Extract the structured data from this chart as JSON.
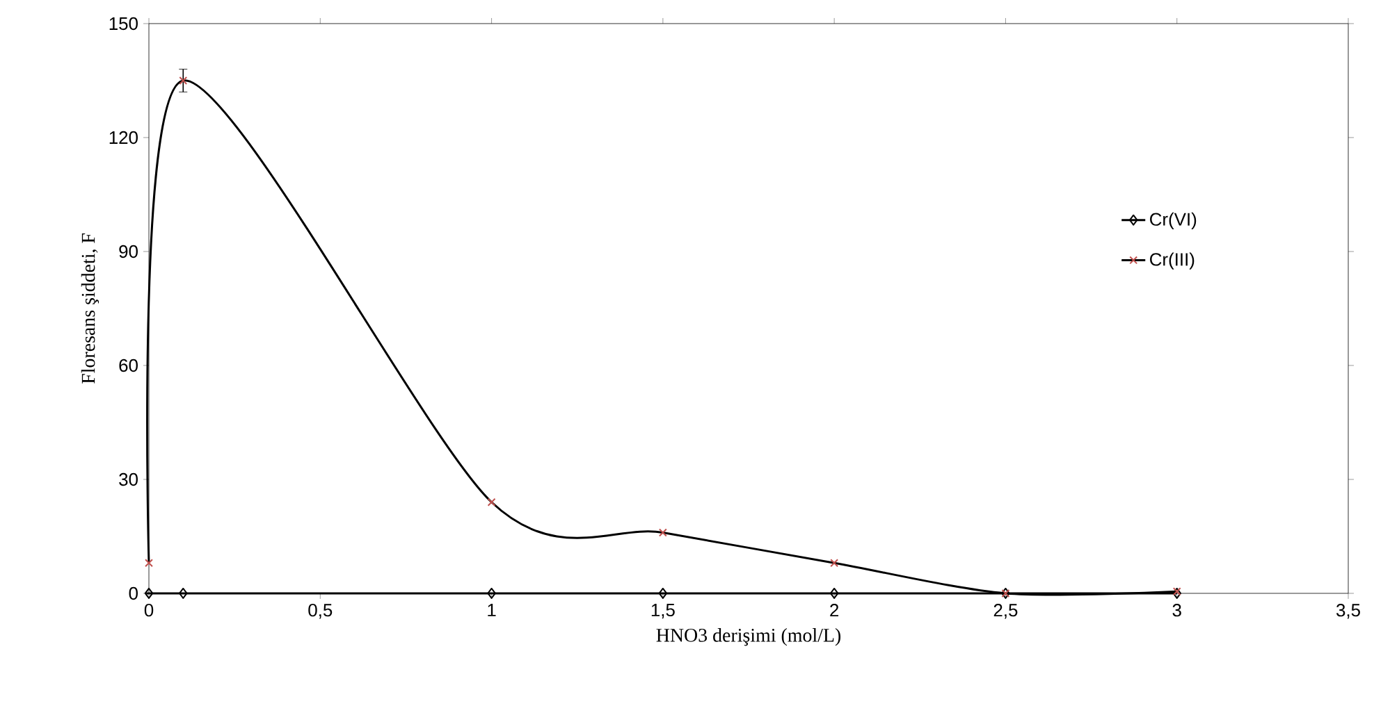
{
  "chart_data": {
    "type": "line",
    "xlabel": "HNO3 derişimi (mol/L)",
    "ylabel": "Floresans şiddeti, F",
    "xlim": [
      0,
      3.5
    ],
    "ylim": [
      0,
      150
    ],
    "xticks": [
      0,
      {
        "value": 0.5,
        "label": "0,5"
      },
      1,
      {
        "value": 1.5,
        "label": "1,5"
      },
      2,
      {
        "value": 2.5,
        "label": "2,5"
      },
      3,
      {
        "value": 3.5,
        "label": "3,5"
      }
    ],
    "yticks": [
      0,
      30,
      60,
      90,
      120,
      150
    ],
    "legend": "right",
    "grid": false,
    "line_style": "solid",
    "series": [
      {
        "name": "Cr(VI)",
        "color": "#000000",
        "marker": "diamond",
        "x": [
          0,
          0.1,
          1,
          1.5,
          2,
          2.5,
          3
        ],
        "values": [
          0,
          0,
          0,
          0,
          0,
          0,
          0
        ]
      },
      {
        "name": "Cr(III)",
        "color": "#000000",
        "colors": [
          "#c0504d",
          "#c0504d",
          "#c0504d",
          "#c0504d",
          "#c0504d",
          "#c0504d",
          "#c0504d"
        ],
        "marker": "cross",
        "x": [
          0,
          0.1,
          1,
          1.5,
          2,
          2.5,
          3
        ],
        "values": [
          8,
          135,
          24,
          16,
          8,
          0,
          0.5
        ],
        "errors": [
          null,
          3,
          null,
          null,
          null,
          null,
          null
        ]
      }
    ]
  }
}
